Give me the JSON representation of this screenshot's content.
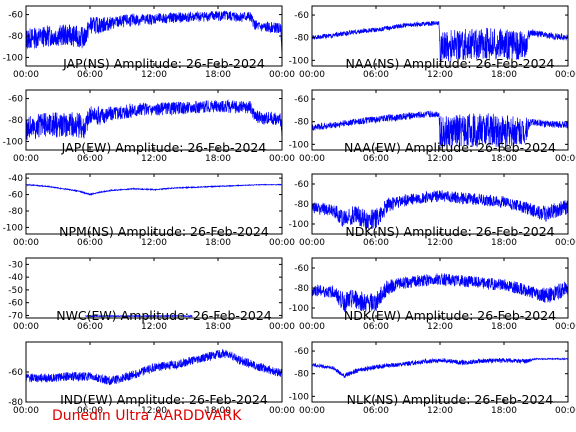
{
  "footer": "Dunedin Ultra AARDDVARK",
  "colors": {
    "trace": "#0000ff",
    "axes": "#000000",
    "footer": "#e00000"
  },
  "chart_data": [
    {
      "type": "line",
      "title": "JAP(NS) Amplitude: 26-Feb-2024",
      "x_ticks": [
        "00:00",
        "06:00",
        "12:00",
        "18:00",
        "00:00"
      ],
      "y_ticks": [
        -100,
        -80,
        -60
      ],
      "ylim": [
        -108,
        -52
      ],
      "series": [
        {
          "t": [
            0,
            2,
            4,
            5.5,
            6,
            7,
            8,
            10,
            12,
            14,
            16,
            18,
            20,
            21,
            21.5,
            22,
            23,
            23.9,
            24
          ],
          "v": [
            -83,
            -80,
            -79,
            -82,
            -70,
            -70,
            -68,
            -65,
            -64,
            -63,
            -62,
            -61,
            -62,
            -62,
            -70,
            -72,
            -72,
            -73,
            -95
          ],
          "noise": [
            10,
            10,
            10,
            10,
            8,
            8,
            6,
            6,
            5,
            5,
            5,
            5,
            5,
            5,
            5,
            5,
            5,
            5,
            5
          ]
        }
      ]
    },
    {
      "type": "line",
      "title": "NAA(NS) Amplitude: 26-Feb-2024",
      "x_ticks": [
        "00:00",
        "06:00",
        "12:00",
        "18:00",
        "00:00"
      ],
      "y_ticks": [
        -100,
        -80,
        -60
      ],
      "ylim": [
        -105,
        -52
      ],
      "series": [
        {
          "t": [
            0,
            2,
            4,
            6,
            8,
            10,
            11.9,
            12,
            14,
            16,
            18,
            20,
            20.5,
            22,
            24
          ],
          "v": [
            -80,
            -78,
            -75,
            -73,
            -70,
            -68,
            -67,
            -88,
            -86,
            -85,
            -86,
            -87,
            -75,
            -78,
            -80
          ],
          "noise": [
            2,
            2,
            2,
            2,
            2,
            2,
            2,
            14,
            14,
            14,
            14,
            12,
            3,
            3,
            3
          ]
        }
      ]
    },
    {
      "type": "line",
      "title": "JAP(EW) Amplitude: 26-Feb-2024",
      "x_ticks": [
        "00:00",
        "06:00",
        "12:00",
        "18:00",
        "00:00"
      ],
      "y_ticks": [
        -100,
        -80,
        -60
      ],
      "ylim": [
        -108,
        -52
      ],
      "series": [
        {
          "t": [
            0,
            2,
            4,
            5.5,
            6,
            7,
            8,
            10,
            12,
            14,
            16,
            18,
            20,
            21,
            21.5,
            22,
            23,
            23.9,
            24
          ],
          "v": [
            -88,
            -85,
            -84,
            -86,
            -76,
            -76,
            -74,
            -71,
            -70,
            -69,
            -68,
            -67,
            -68,
            -68,
            -76,
            -78,
            -78,
            -80,
            -98
          ],
          "noise": [
            12,
            12,
            12,
            12,
            9,
            9,
            7,
            7,
            6,
            6,
            6,
            6,
            6,
            6,
            6,
            6,
            6,
            6,
            6
          ]
        }
      ]
    },
    {
      "type": "line",
      "title": "NAA(EW) Amplitude: 26-Feb-2024",
      "x_ticks": [
        "00:00",
        "06:00",
        "12:00",
        "18:00",
        "00:00"
      ],
      "y_ticks": [
        -100,
        -80,
        -60
      ],
      "ylim": [
        -105,
        -52
      ],
      "series": [
        {
          "t": [
            0,
            2,
            4,
            6,
            8,
            10,
            11.9,
            12,
            14,
            16,
            18,
            20,
            20.5,
            22,
            24
          ],
          "v": [
            -85,
            -83,
            -80,
            -78,
            -76,
            -74,
            -73,
            -90,
            -88,
            -87,
            -88,
            -88,
            -80,
            -82,
            -83
          ],
          "noise": [
            3,
            3,
            3,
            3,
            3,
            3,
            3,
            15,
            15,
            15,
            15,
            12,
            3,
            3,
            3
          ]
        }
      ]
    },
    {
      "type": "line",
      "title": "NPM(NS) Amplitude: 26-Feb-2024",
      "x_ticks": [
        "00:00",
        "06:00",
        "12:00",
        "18:00",
        "00:00"
      ],
      "y_ticks": [
        -100,
        -80,
        -60,
        -40
      ],
      "ylim": [
        -108,
        -35
      ],
      "series": [
        {
          "t": [
            0,
            2,
            4,
            5,
            6,
            7,
            8,
            10,
            12,
            14,
            16,
            18,
            20,
            22,
            24
          ],
          "v": [
            -48,
            -50,
            -54,
            -56,
            -60,
            -57,
            -55,
            -53,
            -54,
            -52,
            -51,
            -50,
            -49,
            -48,
            -48
          ],
          "noise": [
            0.6,
            0.6,
            0.6,
            0.6,
            0.8,
            0.6,
            0.6,
            0.6,
            0.6,
            0.6,
            0.6,
            0.6,
            0.4,
            0.4,
            0.4
          ]
        }
      ]
    },
    {
      "type": "line",
      "title": "NDK(NS) Amplitude: 26-Feb-2024",
      "x_ticks": [
        "00:00",
        "06:00",
        "12:00",
        "18:00",
        "00:00"
      ],
      "y_ticks": [
        -100,
        -80,
        -60
      ],
      "ylim": [
        -110,
        -50
      ],
      "series": [
        {
          "t": [
            0,
            2,
            3,
            4,
            5,
            6,
            7,
            8,
            10,
            12,
            14,
            16,
            18,
            20,
            22,
            24
          ],
          "v": [
            -84,
            -86,
            -95,
            -90,
            -96,
            -95,
            -82,
            -78,
            -74,
            -72,
            -74,
            -76,
            -78,
            -84,
            -90,
            -82
          ],
          "noise": [
            6,
            6,
            10,
            10,
            10,
            10,
            8,
            6,
            6,
            6,
            6,
            6,
            6,
            6,
            8,
            8
          ]
        }
      ]
    },
    {
      "type": "line",
      "title": "NWC(EW) Amplitude: 26-Feb-2024",
      "x_ticks": [
        "00:00",
        "06:00",
        "12:00",
        "18:00",
        "00:00"
      ],
      "y_ticks": [
        -70,
        -60,
        -50,
        -40,
        -30
      ],
      "ylim": [
        -72,
        -25
      ],
      "series": [
        {
          "t": [
            5.6,
            6.0,
            10.8,
            11.1,
            15.2,
            15.6
          ],
          "v": [
            -70.5,
            -70.5,
            -70.5,
            -70.5,
            -70.5,
            -70.5
          ],
          "noise": [
            0.4,
            0.4,
            0.4,
            0.4,
            0.4,
            0.4
          ]
        }
      ]
    },
    {
      "type": "line",
      "title": "NDK(EW) Amplitude: 26-Feb-2024",
      "x_ticks": [
        "00:00",
        "06:00",
        "12:00",
        "18:00",
        "00:00"
      ],
      "y_ticks": [
        -100,
        -80,
        -60
      ],
      "ylim": [
        -110,
        -50
      ],
      "series": [
        {
          "t": [
            0,
            2,
            3,
            4,
            5,
            6,
            7,
            8,
            10,
            12,
            14,
            16,
            18,
            20,
            22,
            24
          ],
          "v": [
            -82,
            -84,
            -94,
            -90,
            -95,
            -94,
            -80,
            -76,
            -73,
            -71,
            -73,
            -75,
            -77,
            -82,
            -88,
            -80
          ],
          "noise": [
            6,
            6,
            10,
            10,
            10,
            10,
            8,
            6,
            6,
            6,
            6,
            6,
            6,
            6,
            8,
            8
          ]
        }
      ]
    },
    {
      "type": "line",
      "title": "IND(EW) Amplitude: 26-Feb-2024",
      "x_ticks": [
        "00:00",
        "06:00",
        "12:00",
        "18:00",
        "00:00"
      ],
      "y_ticks": [
        -80,
        -60
      ],
      "ylim": [
        -80,
        -40
      ],
      "series": [
        {
          "t": [
            0,
            2,
            4,
            6,
            8,
            10,
            12,
            14,
            16,
            18,
            19,
            20,
            22,
            24
          ],
          "v": [
            -64,
            -64,
            -63,
            -63,
            -66,
            -62,
            -57,
            -55,
            -52,
            -48,
            -48,
            -52,
            -57,
            -61
          ],
          "noise": [
            3,
            3,
            3,
            3,
            3,
            3,
            3,
            3,
            3,
            3,
            3,
            3,
            3,
            3
          ]
        }
      ]
    },
    {
      "type": "line",
      "title": "NLK(NS) Amplitude: 26-Feb-2024",
      "x_ticks": [
        "00:00",
        "06:00",
        "12:00",
        "18:00",
        "00:00"
      ],
      "y_ticks": [
        -100,
        -80,
        -60
      ],
      "ylim": [
        -105,
        -52
      ],
      "series": [
        {
          "t": [
            0,
            2,
            3,
            4,
            6,
            8,
            10,
            12,
            14,
            16,
            18,
            20,
            21,
            22,
            24
          ],
          "v": [
            -72,
            -75,
            -82,
            -78,
            -74,
            -72,
            -70,
            -68,
            -70,
            -69,
            -68,
            -69,
            -67,
            -67,
            -67
          ],
          "noise": [
            1.5,
            1.5,
            2,
            2,
            2,
            2,
            2,
            2,
            2,
            2,
            2,
            2,
            0.5,
            0.5,
            0.5
          ]
        }
      ]
    }
  ]
}
